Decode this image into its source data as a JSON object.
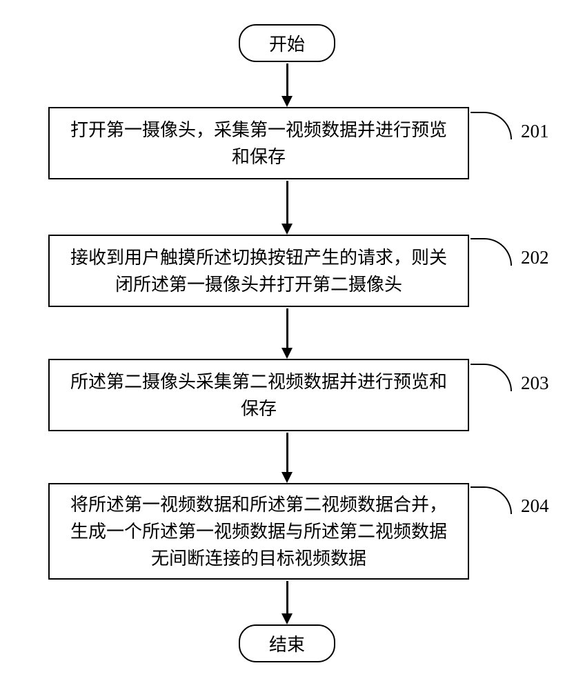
{
  "flowchart": {
    "type": "flowchart",
    "background_color": "#ffffff",
    "border_color": "#000000",
    "text_color": "#000000",
    "border_width": 2.5,
    "font_family": "SimSun",
    "nodes": {
      "start": {
        "label": "开始",
        "shape": "terminator",
        "font_size": 26
      },
      "step1": {
        "label": "打开第一摄像头，采集第一视频数据并进行预览和保存",
        "shape": "process",
        "step_number": "201",
        "font_size": 26
      },
      "step2": {
        "label": "接收到用户触摸所述切换按钮产生的请求，则关闭所述第一摄像头并打开第二摄像头",
        "shape": "process",
        "step_number": "202",
        "font_size": 26
      },
      "step3": {
        "label": "所述第二摄像头采集第二视频数据并进行预览和保存",
        "shape": "process",
        "step_number": "203",
        "font_size": 26
      },
      "step4": {
        "label": "将所述第一视频数据和所述第二视频数据合并，生成一个所述第一视频数据与所述第二视频数据无间断连接的目标视频数据",
        "shape": "process",
        "step_number": "204",
        "font_size": 26
      },
      "end": {
        "label": "结束",
        "shape": "terminator",
        "font_size": 26
      }
    },
    "edges": [
      {
        "from": "start",
        "to": "step1"
      },
      {
        "from": "step1",
        "to": "step2"
      },
      {
        "from": "step2",
        "to": "step3"
      },
      {
        "from": "step3",
        "to": "step4"
      },
      {
        "from": "step4",
        "to": "end"
      }
    ],
    "arrow_style": {
      "head_width": 16,
      "head_height": 16,
      "line_width": 2.5
    }
  }
}
